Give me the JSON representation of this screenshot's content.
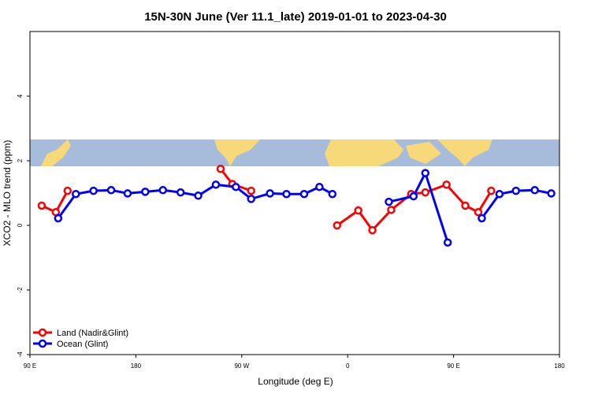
{
  "chart_data": {
    "type": "line",
    "title": "15N-30N June (Ver 11.1_late)   2019-01-01 to 2023-04-30",
    "x_label": "Longitude (deg E)",
    "y_label": "XCO2 - MLO trend (ppm)",
    "xlim": [
      90,
      540
    ],
    "ylim": [
      -4,
      6
    ],
    "xticks": [
      {
        "value": 90,
        "label": "90 E"
      },
      180,
      {
        "value": 270,
        "label": "90 W"
      },
      {
        "value": 360,
        "label": "0"
      },
      {
        "value": 450,
        "label": "90 E"
      },
      {
        "value": 540,
        "label": "180"
      }
    ],
    "yticks": [
      -4,
      -2,
      0,
      2,
      4
    ],
    "legend": "bottom-left",
    "series": [
      {
        "name": "Land (Nadir&Glint)",
        "color": "#ff0000",
        "x": [
          100,
          112,
          122,
          null,
          252,
          262,
          278,
          null,
          351,
          369,
          381,
          397,
          414,
          426,
          444,
          460,
          471,
          482
        ],
        "values": [
          0.61,
          0.41,
          1.07,
          null,
          1.75,
          1.28,
          1.07,
          null,
          0,
          0.46,
          -0.15,
          0.48,
          0.97,
          1.02,
          1.26,
          0.61,
          0.41,
          1.07
        ]
      },
      {
        "name": "Ocean (Glint)",
        "color": "#0000ff",
        "x": [
          114,
          129,
          144,
          159,
          173,
          188,
          203,
          218,
          233,
          248,
          265,
          278,
          294,
          308,
          323,
          336,
          347,
          null,
          395,
          416,
          426,
          445,
          null,
          474,
          489,
          503,
          519,
          533
        ],
        "values": [
          0.22,
          0.97,
          1.07,
          1.09,
          0.99,
          1.04,
          1.09,
          1.02,
          0.92,
          1.26,
          1.19,
          0.82,
          0.99,
          0.97,
          0.97,
          1.19,
          0.97,
          null,
          0.73,
          0.9,
          1.62,
          -0.53,
          null,
          0.22,
          0.97,
          1.07,
          1.09,
          0.99
        ]
      }
    ]
  }
}
